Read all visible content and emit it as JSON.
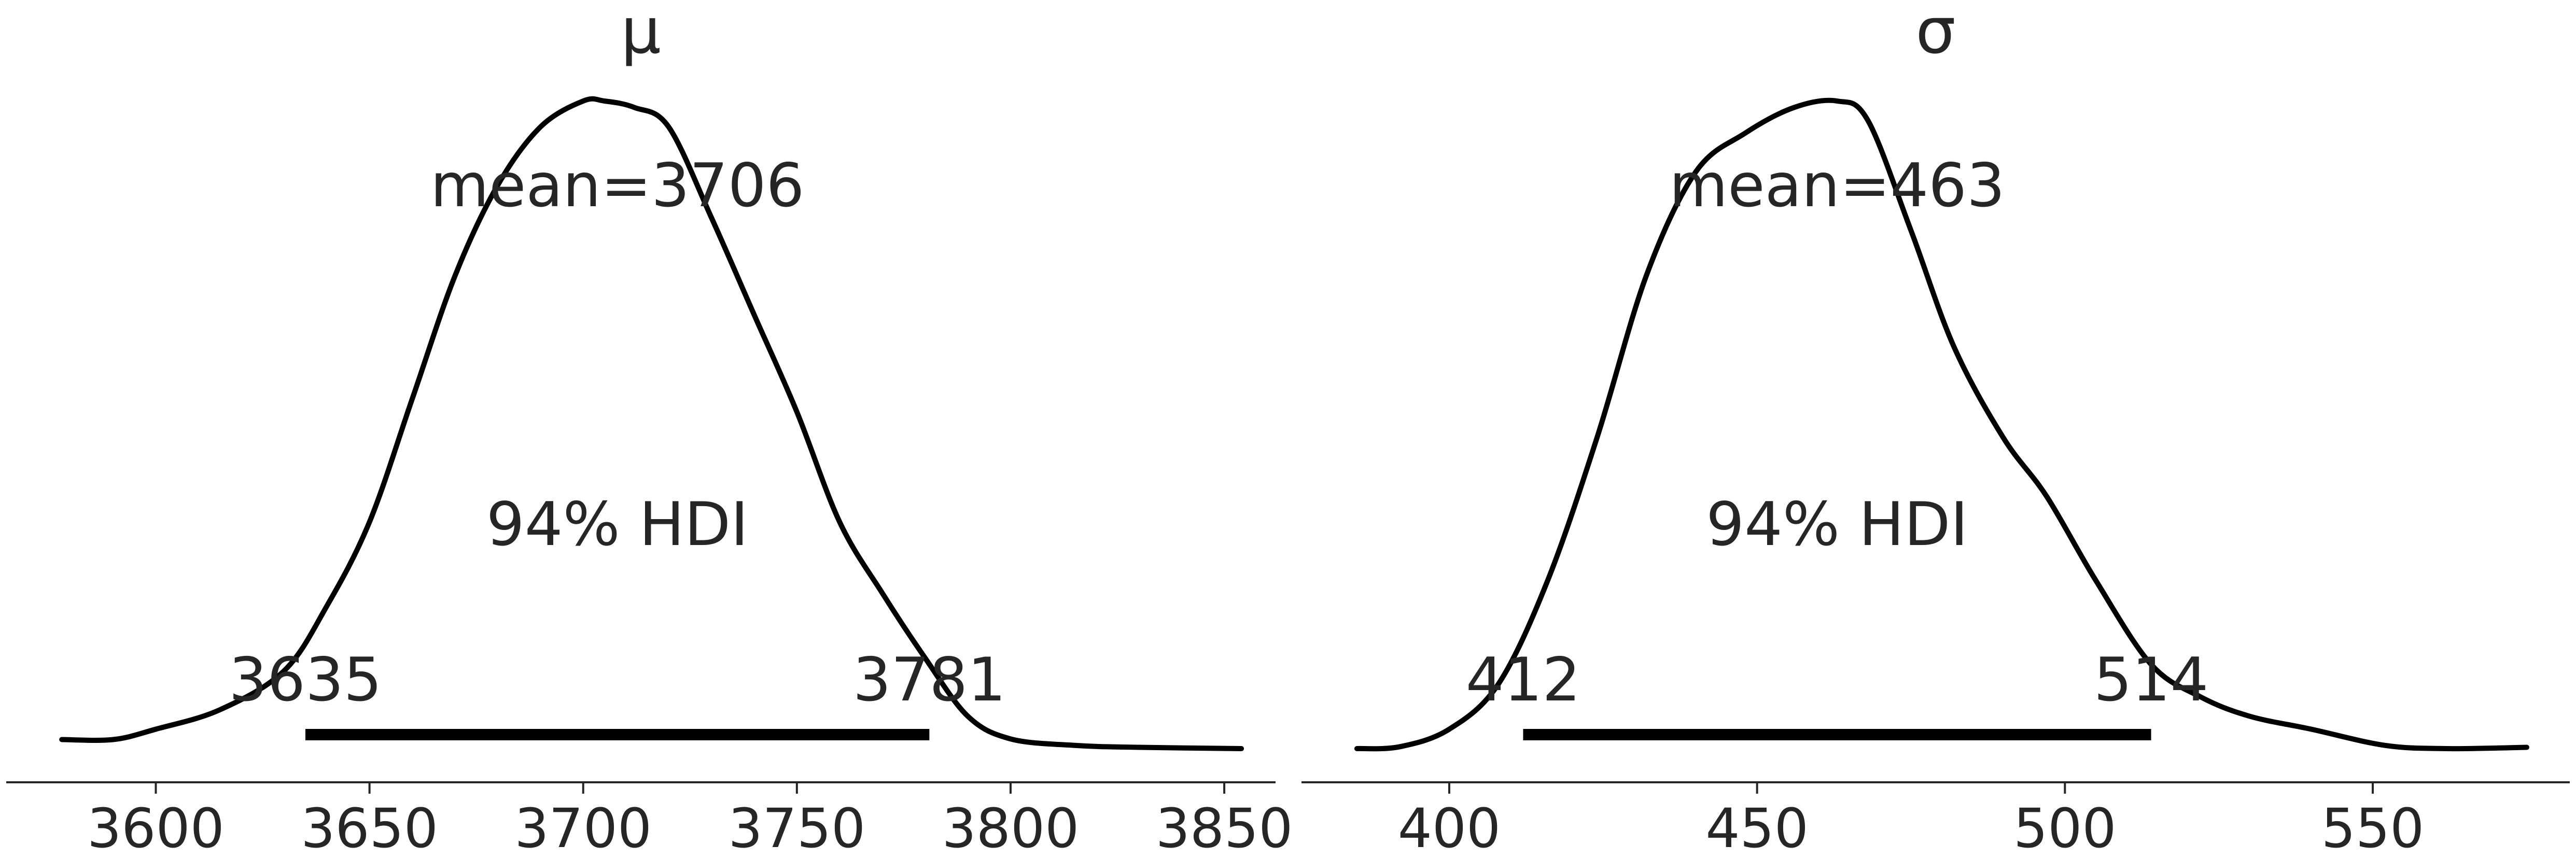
{
  "chart_data": [
    {
      "type": "area",
      "title": "μ",
      "xlim": [
        3565,
        3862
      ],
      "xticks": [
        3600,
        3650,
        3700,
        3750,
        3800,
        3850
      ],
      "xtick_labels": [
        "3600",
        "3650",
        "3700",
        "3750",
        "3800",
        "3850"
      ],
      "y_axis_visible": false,
      "grid": false,
      "mean": 3706,
      "mean_label": "mean=3706",
      "hdi_prob_label": "94% HDI",
      "hdi": [
        3635,
        3781
      ],
      "hdi_labels": [
        "3635",
        "3781"
      ],
      "density": {
        "x": [
          3578,
          3590,
          3600,
          3615,
          3630,
          3640,
          3650,
          3660,
          3670,
          3680,
          3690,
          3700,
          3705,
          3712,
          3720,
          3730,
          3740,
          3750,
          3760,
          3770,
          3780,
          3790,
          3800,
          3815,
          3830,
          3854
        ],
        "y": [
          0.014,
          0.014,
          0.03,
          0.06,
          0.12,
          0.22,
          0.35,
          0.54,
          0.73,
          0.87,
          0.96,
          1.0,
          1.0,
          0.99,
          0.96,
          0.82,
          0.67,
          0.52,
          0.35,
          0.24,
          0.14,
          0.05,
          0.015,
          0.005,
          0.002,
          0.0
        ]
      }
    },
    {
      "type": "area",
      "title": "σ",
      "xlim": [
        376,
        582
      ],
      "xticks": [
        400,
        450,
        500,
        550
      ],
      "xtick_labels": [
        "400",
        "450",
        "500",
        "550"
      ],
      "y_axis_visible": false,
      "grid": false,
      "mean": 463,
      "mean_label": "mean=463",
      "hdi_prob_label": "94% HDI",
      "hdi": [
        412,
        514
      ],
      "hdi_labels": [
        "412",
        "514"
      ],
      "density": {
        "x": [
          385,
          392,
          400,
          408,
          416,
          424,
          432,
          440,
          448,
          456,
          463,
          468,
          475,
          482,
          490,
          497,
          505,
          514,
          522,
          530,
          540,
          552,
          562,
          575
        ],
        "y": [
          0.0,
          0.003,
          0.03,
          0.1,
          0.26,
          0.48,
          0.73,
          0.89,
          0.95,
          0.99,
          1.0,
          0.97,
          0.8,
          0.62,
          0.48,
          0.39,
          0.26,
          0.13,
          0.08,
          0.05,
          0.03,
          0.005,
          0.0,
          0.002
        ]
      }
    }
  ]
}
